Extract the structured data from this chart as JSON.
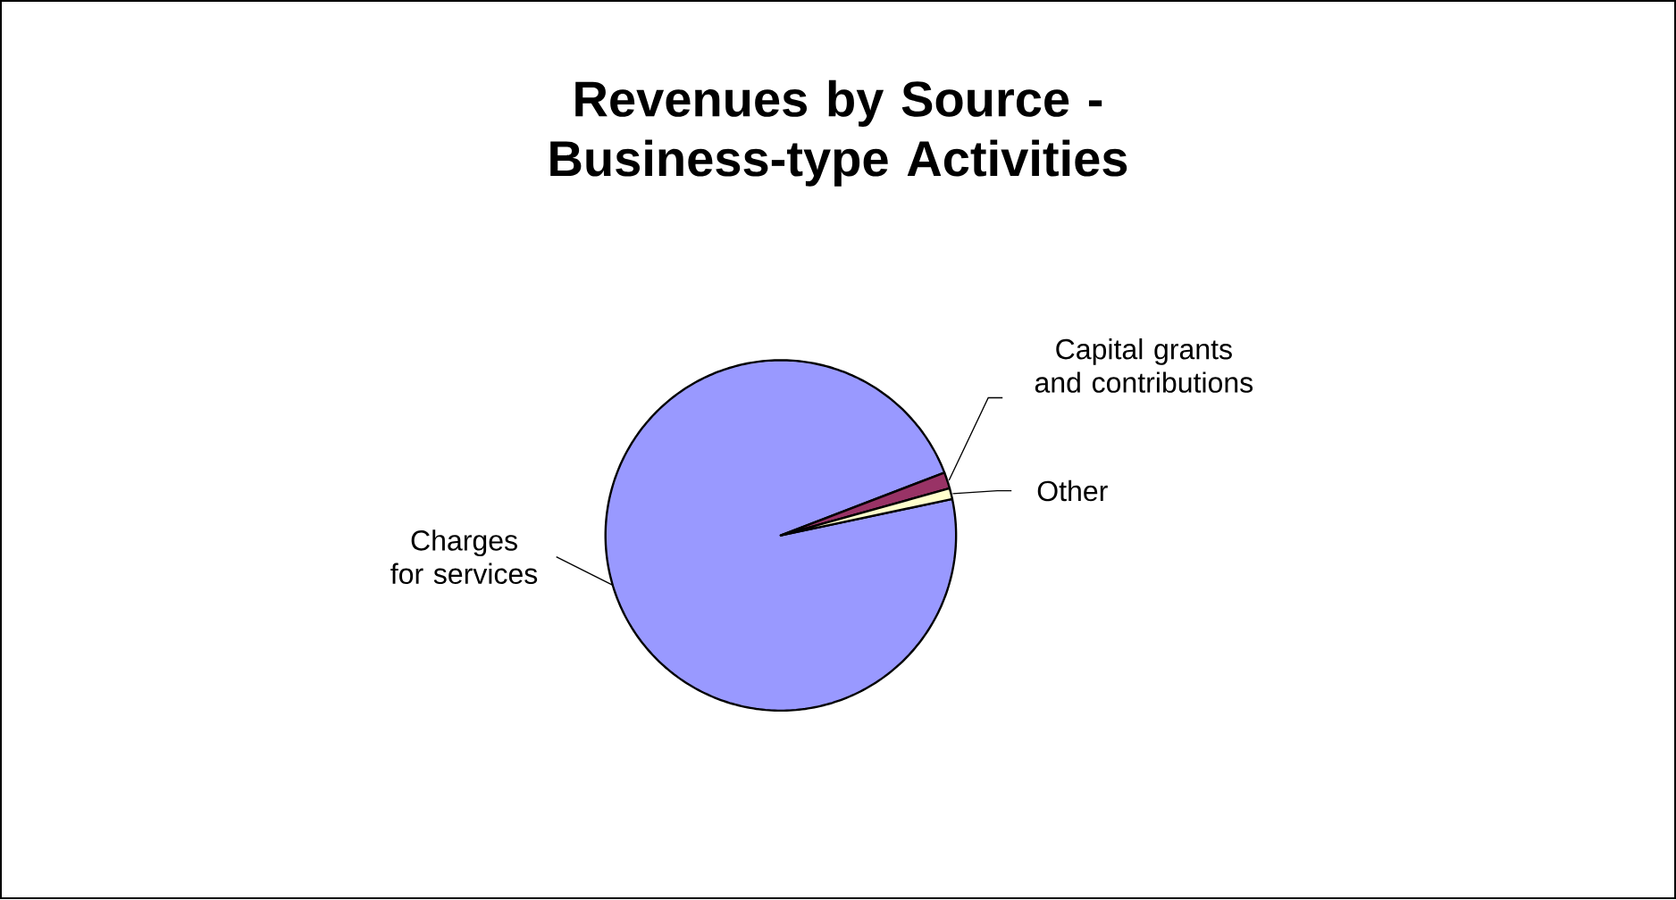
{
  "chart_data": {
    "type": "pie",
    "title": "Revenues by Source - Business-type Activities",
    "categories": [
      "Charges for services",
      "Capital grants and contributions",
      "Other"
    ],
    "values": [
      97.5,
      1.5,
      1.0
    ],
    "colors": [
      "#9999ff",
      "#993366",
      "#ffffcc"
    ]
  }
}
